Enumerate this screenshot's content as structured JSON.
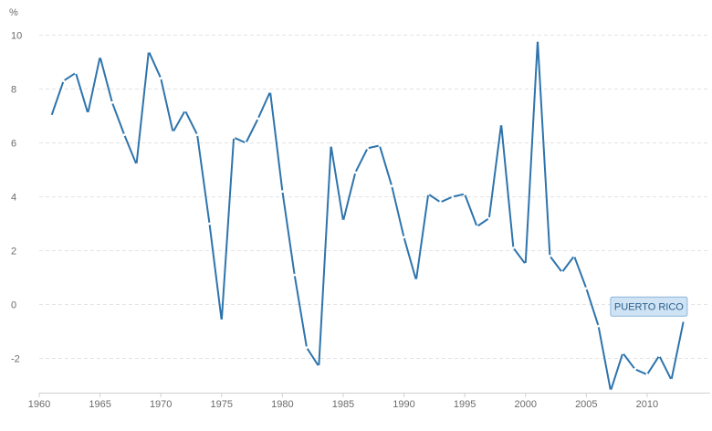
{
  "chart_data": {
    "type": "line",
    "unit": "%",
    "ylim": [
      -3.3,
      10.5
    ],
    "xlim": [
      1960,
      2015
    ],
    "y_ticks": [
      10,
      8,
      6,
      4,
      2,
      0,
      -2
    ],
    "y_tick_labels": [
      "10",
      "8",
      "6",
      "4",
      "2",
      "0",
      "-2"
    ],
    "x_ticks": [
      1960,
      1965,
      1970,
      1975,
      1980,
      1985,
      1990,
      1995,
      2000,
      2005,
      2010
    ],
    "x_tick_labels": [
      "1960",
      "1965",
      "1970",
      "1975",
      "1980",
      "1985",
      "1990",
      "1995",
      "2000",
      "2005",
      "2010"
    ],
    "grid": "horizontal-dashed",
    "line_color": "#2e74ac",
    "series": [
      {
        "name": "PUERTO RICO",
        "x": [
          1961,
          1962,
          1963,
          1964,
          1965,
          1966,
          1967,
          1968,
          1969,
          1970,
          1971,
          1972,
          1973,
          1974,
          1975,
          1976,
          1977,
          1978,
          1979,
          1980,
          1981,
          1982,
          1983,
          1984,
          1985,
          1986,
          1987,
          1988,
          1989,
          1990,
          1991,
          1992,
          1993,
          1994,
          1995,
          1996,
          1997,
          1998,
          1999,
          2000,
          2001,
          2002,
          2003,
          2004,
          2005,
          2006,
          2007,
          2008,
          2009,
          2010,
          2011,
          2012,
          2013
        ],
        "values": [
          7.0,
          8.3,
          8.6,
          7.1,
          9.2,
          7.5,
          6.3,
          5.2,
          9.4,
          8.4,
          6.4,
          7.2,
          6.3,
          3.0,
          -0.6,
          6.2,
          6.0,
          6.9,
          7.9,
          4.2,
          1.1,
          -1.6,
          -2.3,
          5.9,
          3.1,
          4.9,
          5.8,
          5.9,
          4.4,
          2.5,
          0.9,
          4.1,
          3.8,
          4.0,
          4.1,
          2.9,
          3.2,
          6.7,
          2.1,
          1.5,
          9.8,
          1.8,
          1.2,
          1.8,
          0.6,
          -0.8,
          -3.2,
          -1.8,
          -2.4,
          -2.6,
          -1.9,
          -2.8,
          -0.6
        ]
      }
    ]
  }
}
